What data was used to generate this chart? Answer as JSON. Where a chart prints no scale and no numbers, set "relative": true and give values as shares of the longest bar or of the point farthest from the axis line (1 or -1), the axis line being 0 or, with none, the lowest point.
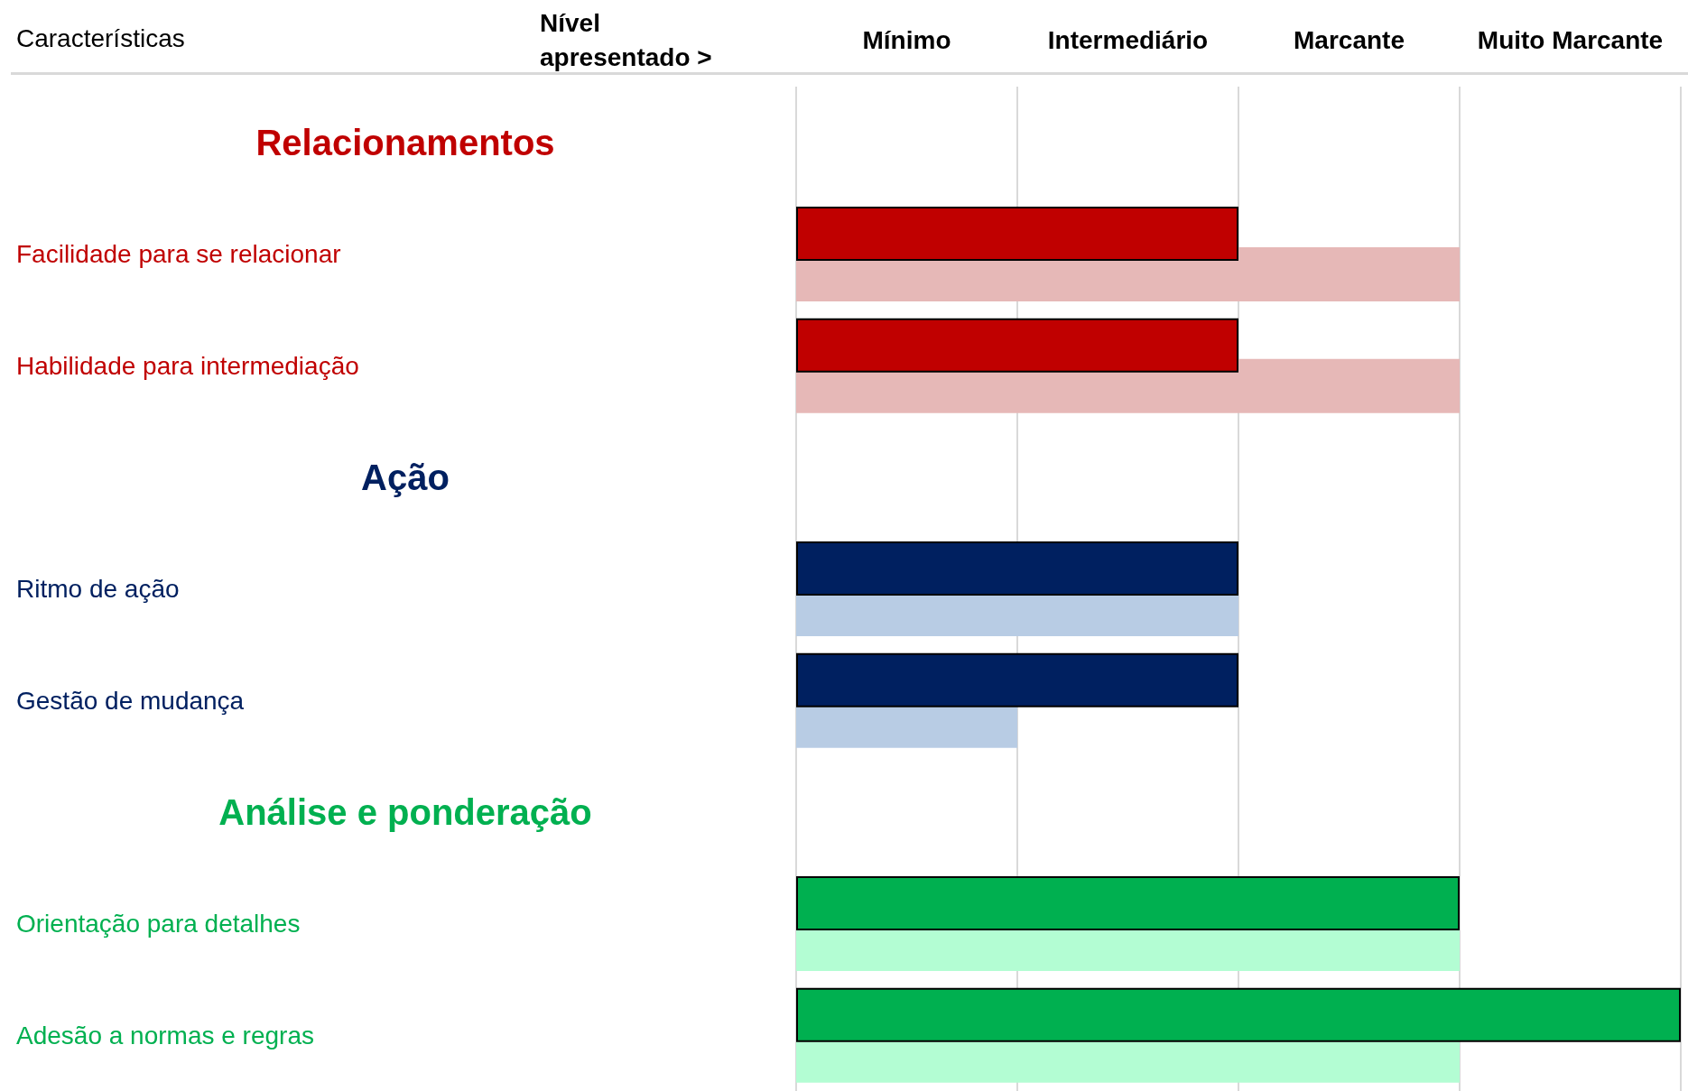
{
  "chart_data": {
    "type": "bar",
    "orientation": "horizontal",
    "relative": true,
    "xlabel": "Nível apresentado >",
    "ylabel": "Características",
    "annotations": [
      "Mínimo",
      "Intermediário",
      "Marcante",
      "Muito Marcante",
      "Relacionamentos",
      "Ação",
      "Análise e ponderação"
    ],
    "categories": [
      null,
      "Facilidade para se relacionar",
      "Habilidade para intermediação",
      null,
      "Ritmo de ação",
      "Gestão de mudança",
      null,
      "Orientação para detalhes",
      "Adesão a normas e regras"
    ],
    "series": [
      {
        "colors": [
          null,
          "#c00000",
          "#c00000",
          null,
          "#002060",
          "#002060",
          null,
          "#00b050",
          "#00b050"
        ],
        "values": [
          null,
          0.5,
          0.5,
          null,
          0.5,
          0.5,
          null,
          0.75,
          1
        ]
      },
      {
        "colors": [
          null,
          "#e6b8b7",
          "#e6b8b7",
          null,
          "#b8cce4",
          "#b8cce4",
          null,
          "#b3fdd3",
          "#b3fdd3"
        ],
        "values": [
          null,
          0.75,
          0.75,
          null,
          0.5,
          0.25,
          null,
          0.75,
          0.75
        ]
      }
    ],
    "grid": "x"
  }
}
